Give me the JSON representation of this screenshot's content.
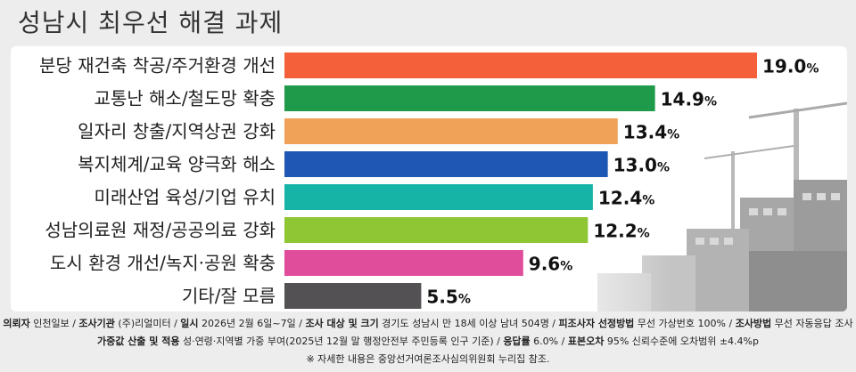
{
  "title": "성남시 최우선 해결 과제",
  "chart_data": {
    "type": "bar",
    "orientation": "horizontal",
    "categories": [
      "분당 재건축 착공/주거환경 개선",
      "교통난 해소/철도망 확충",
      "일자리 창출/지역상권 강화",
      "복지체계/교육 양극화 해소",
      "미래산업 육성/기업 유치",
      "성남의료원 재정/공공의료 강화",
      "도시 환경 개선/녹지·공원 확충",
      "기타/잘 모름"
    ],
    "values": [
      19.0,
      14.9,
      13.4,
      13.0,
      12.4,
      12.2,
      9.6,
      5.5
    ],
    "value_labels": [
      "19.0",
      "14.9",
      "13.4",
      "13.0",
      "12.4",
      "12.2",
      "9.6",
      "5.5"
    ],
    "unit": "%",
    "colors": [
      "#f4603a",
      "#1e9a4a",
      "#f0a258",
      "#1f58b4",
      "#16b4a6",
      "#8ec634",
      "#e04d9b",
      "#545154"
    ],
    "xlim": [
      0,
      19.0
    ],
    "grid": false,
    "legend": "none"
  },
  "footer": {
    "line1": [
      {
        "k": "의뢰자",
        "v": " 인천일보"
      },
      {
        "k": "조사기관",
        "v": " (주)리얼미터"
      },
      {
        "k": "일시",
        "v": " 2026년 2월 6일~7일"
      },
      {
        "k": "조사 대상 및 크기",
        "v": " 경기도 성남시 만 18세 이상 남녀 504명"
      },
      {
        "k": "피조사자 선정방법",
        "v": " 무선 가상번호 100%"
      },
      {
        "k": "조사방법",
        "v": " 무선 자동응답 조사"
      }
    ],
    "line2": [
      {
        "k": "가중값 산출 및 적용",
        "v": " 성·연령·지역별 가중 부여(2025년 12월 말 행정안전부 주민등록 인구 기준)"
      },
      {
        "k": "응답률",
        "v": " 6.0%"
      },
      {
        "k": "표본오차",
        "v": " 95% 신뢰수준에 오차범위 ±4.4%p"
      }
    ],
    "line3": "※ 자세한 내용은 중앙선거여론조사심의위원회 누리집 참조."
  }
}
